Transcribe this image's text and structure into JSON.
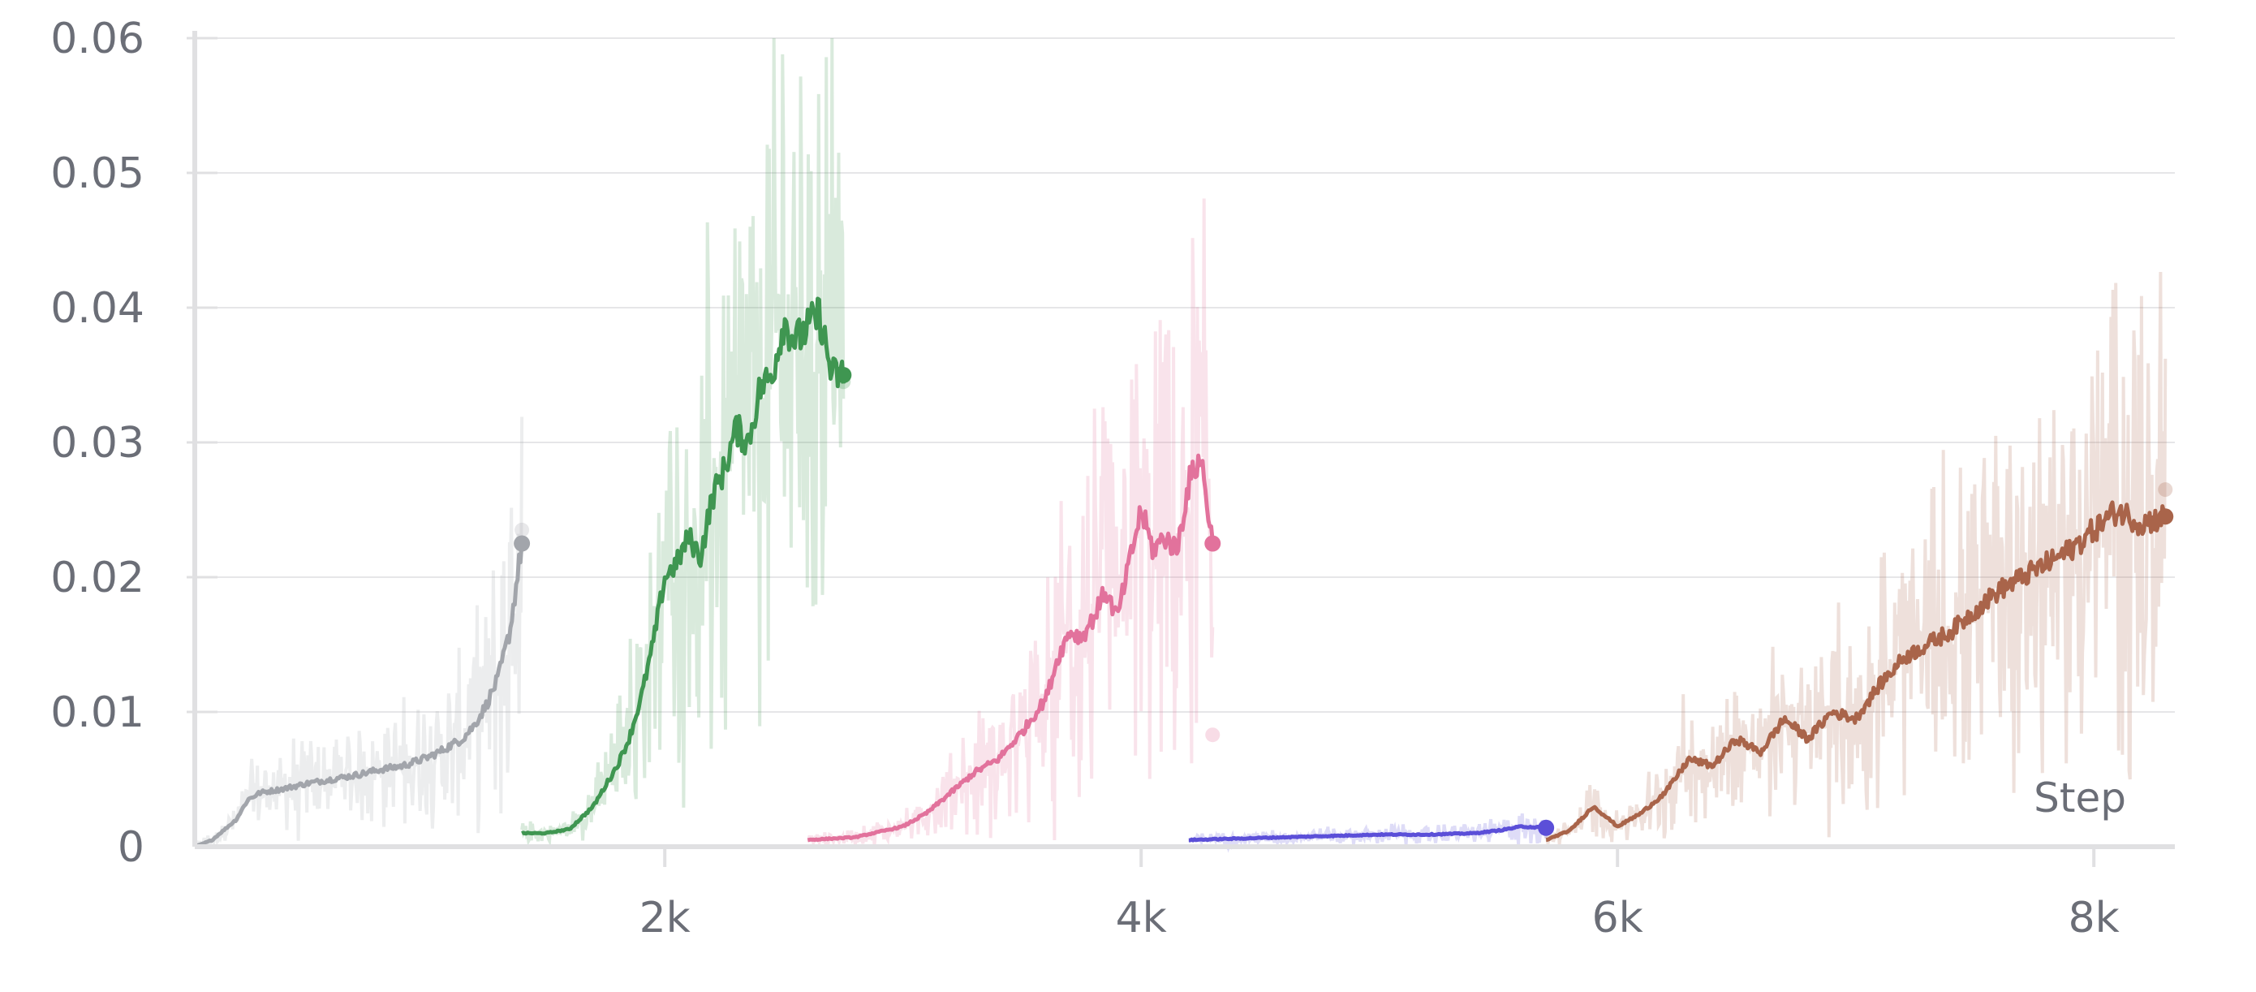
{
  "chart_data": {
    "type": "line",
    "xlabel": "Step",
    "ylabel": "",
    "xlim": [
      0,
      8300
    ],
    "ylim": [
      0,
      0.06
    ],
    "grid": true,
    "x_ticks": [
      {
        "value": 2000,
        "label": "2k"
      },
      {
        "value": 4000,
        "label": "4k"
      },
      {
        "value": 6000,
        "label": "6k"
      },
      {
        "value": 8000,
        "label": "8k"
      }
    ],
    "y_ticks": [
      {
        "value": 0,
        "label": "0"
      },
      {
        "value": 0.01,
        "label": "0.01"
      },
      {
        "value": 0.02,
        "label": "0.02"
      },
      {
        "value": 0.03,
        "label": "0.03"
      },
      {
        "value": 0.04,
        "label": "0.04"
      },
      {
        "value": 0.05,
        "label": "0.05"
      },
      {
        "value": 0.06,
        "label": "0.06"
      }
    ],
    "series": [
      {
        "color": "#a2a5ab",
        "x": [
          30,
          100,
          200,
          250,
          300,
          400,
          500,
          600,
          700,
          800,
          900,
          1000,
          1050,
          1100,
          1150,
          1200,
          1250,
          1300,
          1350,
          1400
        ],
        "values": [
          0.0,
          0.0005,
          0.002,
          0.0035,
          0.004,
          0.0043,
          0.0047,
          0.005,
          0.0053,
          0.0057,
          0.006,
          0.0066,
          0.007,
          0.0075,
          0.008,
          0.009,
          0.0105,
          0.0125,
          0.016,
          0.0225
        ],
        "last_raw": 0.0235
      },
      {
        "color": "#3f9651",
        "x": [
          1400,
          1500,
          1600,
          1700,
          1800,
          1850,
          1900,
          1950,
          2000,
          2050,
          2100,
          2150,
          2200,
          2250,
          2300,
          2350,
          2400,
          2450,
          2500,
          2550,
          2600,
          2650,
          2700,
          2750
        ],
        "values": [
          0.001,
          0.001,
          0.0013,
          0.003,
          0.006,
          0.008,
          0.011,
          0.015,
          0.02,
          0.021,
          0.023,
          0.0215,
          0.026,
          0.028,
          0.031,
          0.03,
          0.034,
          0.035,
          0.039,
          0.0375,
          0.0385,
          0.0395,
          0.035,
          0.035
        ],
        "last_raw": 0.0345
      },
      {
        "color": "#e2729c",
        "x": [
          2600,
          2800,
          3000,
          3100,
          3200,
          3300,
          3400,
          3500,
          3600,
          3650,
          3700,
          3750,
          3800,
          3850,
          3900,
          3950,
          4000,
          4050,
          4100,
          4150,
          4200,
          4250,
          4300
        ],
        "values": [
          0.0005,
          0.0007,
          0.0015,
          0.0025,
          0.004,
          0.0055,
          0.0065,
          0.0085,
          0.011,
          0.014,
          0.016,
          0.0155,
          0.017,
          0.019,
          0.017,
          0.021,
          0.025,
          0.022,
          0.023,
          0.022,
          0.027,
          0.029,
          0.0225
        ],
        "last_raw": 0.0083
      },
      {
        "color": "#5b4fd8",
        "x": [
          4200,
          4400,
          4600,
          4800,
          5000,
          5200,
          5400,
          5500,
          5600,
          5700
        ],
        "values": [
          0.0005,
          0.0006,
          0.0007,
          0.0008,
          0.0009,
          0.0009,
          0.001,
          0.0012,
          0.0015,
          0.0014
        ],
        "last_raw": 0.0014
      },
      {
        "color": "#a9644a",
        "x": [
          5700,
          5800,
          5900,
          6000,
          6100,
          6200,
          6300,
          6400,
          6500,
          6600,
          6700,
          6800,
          6900,
          7000,
          7100,
          7200,
          7300,
          7400,
          7500,
          7600,
          7700,
          7800,
          7900,
          8000,
          8100,
          8200,
          8300
        ],
        "values": [
          0.0005,
          0.0012,
          0.003,
          0.0015,
          0.0025,
          0.004,
          0.0065,
          0.006,
          0.008,
          0.007,
          0.0095,
          0.008,
          0.01,
          0.0095,
          0.012,
          0.014,
          0.015,
          0.016,
          0.0175,
          0.019,
          0.02,
          0.021,
          0.022,
          0.0235,
          0.025,
          0.024,
          0.0245
        ],
        "last_raw": 0.0265
      }
    ]
  }
}
